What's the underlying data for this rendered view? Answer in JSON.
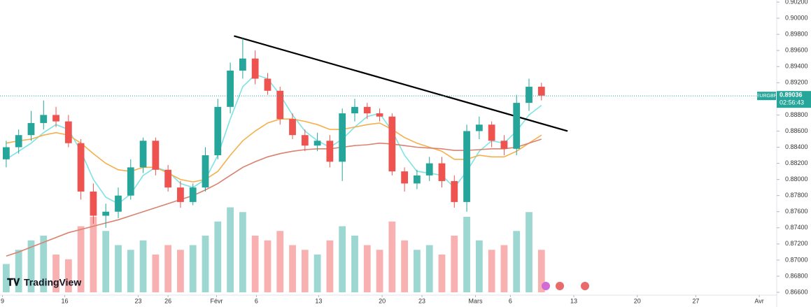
{
  "chart_data": {
    "type": "candlestick",
    "symbol": "EURGBP",
    "last_price": {
      "value": 0.89036,
      "label": "0.89036"
    },
    "countdown": "02:56:43",
    "logo": "TradingView",
    "open": [
      0.8825,
      0.884,
      0.8855,
      0.887,
      0.888,
      0.8872,
      0.8845,
      0.8785,
      0.8755,
      0.876,
      0.878,
      0.8815,
      0.8848,
      0.8812,
      0.879,
      0.8772,
      0.879,
      0.883,
      0.889,
      0.8935,
      0.895,
      0.8925,
      0.891,
      0.8875,
      0.8855,
      0.8842,
      0.8848,
      0.8822,
      0.8882,
      0.889,
      0.8882,
      0.8878,
      0.881,
      0.8795,
      0.8805,
      0.882,
      0.8798,
      0.8772,
      0.886,
      0.8868,
      0.8848,
      0.8838,
      0.8895,
      0.8915
    ],
    "high": [
      0.8848,
      0.8862,
      0.8885,
      0.8898,
      0.889,
      0.888,
      0.885,
      0.8795,
      0.877,
      0.879,
      0.8825,
      0.8852,
      0.8852,
      0.8818,
      0.8798,
      0.8795,
      0.884,
      0.89,
      0.8945,
      0.8975,
      0.896,
      0.8932,
      0.8915,
      0.8882,
      0.8862,
      0.8858,
      0.8855,
      0.8888,
      0.89,
      0.8895,
      0.8888,
      0.8882,
      0.8815,
      0.8812,
      0.8828,
      0.8828,
      0.8805,
      0.8868,
      0.8878,
      0.8872,
      0.8855,
      0.8905,
      0.8925,
      0.892
    ],
    "low": [
      0.8815,
      0.8832,
      0.8848,
      0.8862,
      0.8865,
      0.884,
      0.8775,
      0.8745,
      0.874,
      0.8752,
      0.8775,
      0.8808,
      0.8805,
      0.8785,
      0.8765,
      0.8768,
      0.8785,
      0.8825,
      0.8882,
      0.8925,
      0.8918,
      0.8905,
      0.8868,
      0.885,
      0.8835,
      0.8835,
      0.8815,
      0.8798,
      0.8872,
      0.8875,
      0.8872,
      0.8805,
      0.8785,
      0.8788,
      0.8798,
      0.879,
      0.8765,
      0.876,
      0.885,
      0.884,
      0.883,
      0.883,
      0.8885,
      0.8898
    ],
    "close": [
      0.884,
      0.8855,
      0.887,
      0.888,
      0.8872,
      0.8845,
      0.8785,
      0.8755,
      0.876,
      0.878,
      0.8815,
      0.8848,
      0.8812,
      0.879,
      0.8772,
      0.879,
      0.883,
      0.889,
      0.8935,
      0.895,
      0.8925,
      0.891,
      0.8875,
      0.8855,
      0.8842,
      0.8848,
      0.8822,
      0.8882,
      0.889,
      0.8882,
      0.8878,
      0.881,
      0.8795,
      0.8805,
      0.882,
      0.8798,
      0.8772,
      0.886,
      0.8868,
      0.8848,
      0.8838,
      0.8895,
      0.8915,
      0.8904
    ],
    "volume": [
      30,
      45,
      55,
      60,
      40,
      35,
      70,
      80,
      65,
      50,
      45,
      55,
      40,
      50,
      45,
      50,
      60,
      75,
      90,
      85,
      60,
      55,
      65,
      50,
      45,
      40,
      55,
      70,
      60,
      50,
      45,
      75,
      55,
      45,
      50,
      40,
      60,
      80,
      55,
      45,
      50,
      65,
      85,
      45
    ],
    "volume_max": 100,
    "up_color": "#26a69a",
    "down_color": "#ef5350",
    "series": [
      {
        "color": "#7fe3e3",
        "values": [
          0.8825,
          0.8835,
          0.8845,
          0.8858,
          0.8868,
          0.8862,
          0.8835,
          0.88,
          0.8778,
          0.877,
          0.8782,
          0.8805,
          0.8815,
          0.881,
          0.8795,
          0.879,
          0.88,
          0.883,
          0.8875,
          0.8915,
          0.893,
          0.8925,
          0.8905,
          0.888,
          0.886,
          0.8848,
          0.884,
          0.885,
          0.8865,
          0.8878,
          0.8882,
          0.886,
          0.883,
          0.881,
          0.8808,
          0.8805,
          0.879,
          0.881,
          0.8835,
          0.8848,
          0.8845,
          0.886,
          0.888,
          0.8892
        ]
      },
      {
        "color": "#f5b04c",
        "values": [
          0.8845,
          0.8848,
          0.885,
          0.8855,
          0.8858,
          0.8855,
          0.8845,
          0.8832,
          0.882,
          0.8812,
          0.881,
          0.8815,
          0.8815,
          0.8808,
          0.88,
          0.8797,
          0.88,
          0.881,
          0.883,
          0.8848,
          0.886,
          0.887,
          0.8875,
          0.8875,
          0.8872,
          0.8868,
          0.8862,
          0.8862,
          0.8865,
          0.8868,
          0.887,
          0.8862,
          0.8852,
          0.8845,
          0.884,
          0.8835,
          0.8825,
          0.8825,
          0.883,
          0.8828,
          0.8828,
          0.8835,
          0.8845,
          0.8855
        ]
      },
      {
        "color": "#d9826e",
        "values": [
          0.8705,
          0.871,
          0.8716,
          0.8722,
          0.8728,
          0.8734,
          0.8738,
          0.8742,
          0.8746,
          0.875,
          0.8755,
          0.876,
          0.8765,
          0.877,
          0.8775,
          0.878,
          0.8787,
          0.8795,
          0.8805,
          0.8815,
          0.8822,
          0.8828,
          0.8832,
          0.8835,
          0.8837,
          0.8838,
          0.8838,
          0.884,
          0.8842,
          0.8843,
          0.8845,
          0.8844,
          0.8842,
          0.884,
          0.8839,
          0.8838,
          0.8836,
          0.8836,
          0.8837,
          0.8838,
          0.8838,
          0.884,
          0.8845,
          0.885
        ]
      }
    ],
    "trendline": {
      "x": [
        18.8,
        45.6
      ],
      "y": [
        0.8978,
        0.886
      ]
    },
    "xlim": [
      0,
      62.4
    ],
    "xticks": [
      {
        "value": 0.2,
        "label": "9"
      },
      {
        "value": 5.2,
        "label": "16"
      },
      {
        "value": 11.1,
        "label": "23"
      },
      {
        "value": 13.5,
        "label": "26"
      },
      {
        "value": 17.4,
        "label": "Févr"
      },
      {
        "value": 20.6,
        "label": "6"
      },
      {
        "value": 25.6,
        "label": "13"
      },
      {
        "value": 30.7,
        "label": "20"
      },
      {
        "value": 33.9,
        "label": "23"
      },
      {
        "value": 38.2,
        "label": "Mars"
      },
      {
        "value": 41,
        "label": "6"
      },
      {
        "value": 46.1,
        "label": "13"
      },
      {
        "value": 51.2,
        "label": "20"
      },
      {
        "value": 55.9,
        "label": "27"
      },
      {
        "value": 61,
        "label": "Avr"
      }
    ],
    "ylim": [
      0.866,
      0.902
    ],
    "yticks": [
      {
        "value": 0.866,
        "label": "0.86600"
      },
      {
        "value": 0.868,
        "label": "0.86800"
      },
      {
        "value": 0.87,
        "label": "0.87000"
      },
      {
        "value": 0.872,
        "label": "0.87200"
      },
      {
        "value": 0.874,
        "label": "0.87400"
      },
      {
        "value": 0.876,
        "label": "0.87600"
      },
      {
        "value": 0.878,
        "label": "0.87800"
      },
      {
        "value": 0.88,
        "label": "0.88000"
      },
      {
        "value": 0.882,
        "label": "0.88200"
      },
      {
        "value": 0.884,
        "label": "0.88400"
      },
      {
        "value": 0.886,
        "label": "0.88600"
      },
      {
        "value": 0.888,
        "label": "0.88800"
      },
      {
        "value": 0.892,
        "label": "0.89200"
      },
      {
        "value": 0.894,
        "label": "0.89400"
      },
      {
        "value": 0.896,
        "label": "0.89600"
      },
      {
        "value": 0.898,
        "label": "0.89800"
      },
      {
        "value": 0.9,
        "label": "0.90000"
      },
      {
        "value": 0.902,
        "label": "0.90200"
      }
    ]
  }
}
